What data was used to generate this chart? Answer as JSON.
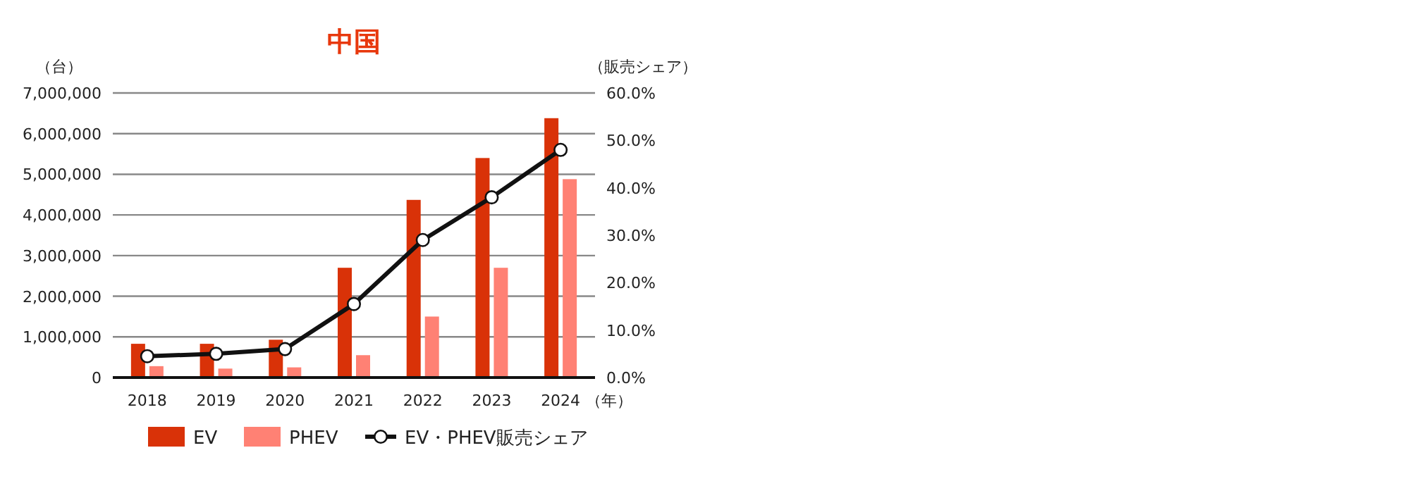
{
  "chart_data": {
    "type": "bar",
    "title": "中国",
    "xlabel": "（年）",
    "ylabel": "（台）",
    "y2label": "（販売シェア）",
    "categories": [
      "2018",
      "2019",
      "2020",
      "2021",
      "2022",
      "2023",
      "2024"
    ],
    "series": [
      {
        "name": "EV",
        "color": "#d93208",
        "values": [
          830000,
          830000,
          930000,
          2700000,
          4370000,
          5400000,
          6380000
        ]
      },
      {
        "name": "PHEV",
        "color": "#ff8174",
        "values": [
          280000,
          220000,
          250000,
          550000,
          1500000,
          2700000,
          4880000
        ]
      },
      {
        "name": "EV・PHEV販売シェア",
        "type": "line",
        "axis": "y2",
        "color": "#111111",
        "values": [
          4.5,
          5.0,
          6.0,
          15.5,
          29.0,
          38.0,
          48.0
        ]
      }
    ],
    "ylim": [
      0,
      7000000
    ],
    "yticks": [
      {
        "value": 0,
        "label": "0"
      },
      {
        "value": 1000000,
        "label": "1,000,000"
      },
      {
        "value": 2000000,
        "label": "2,000,000"
      },
      {
        "value": 3000000,
        "label": "3,000,000"
      },
      {
        "value": 4000000,
        "label": "4,000,000"
      },
      {
        "value": 5000000,
        "label": "5,000,000"
      },
      {
        "value": 6000000,
        "label": "6,000,000"
      },
      {
        "value": 7000000,
        "label": "7,000,000"
      }
    ],
    "y2lim": [
      0,
      60
    ],
    "y2ticks": [
      {
        "value": 0,
        "label": "0.0%"
      },
      {
        "value": 10,
        "label": "10.0%"
      },
      {
        "value": 20,
        "label": "20.0%"
      },
      {
        "value": 30,
        "label": "30.0%"
      },
      {
        "value": 40,
        "label": "40.0%"
      },
      {
        "value": 50,
        "label": "50.0%"
      },
      {
        "value": 60,
        "label": "60.0%"
      }
    ],
    "grid": "y",
    "legend": "bottom",
    "marker": "circle"
  }
}
